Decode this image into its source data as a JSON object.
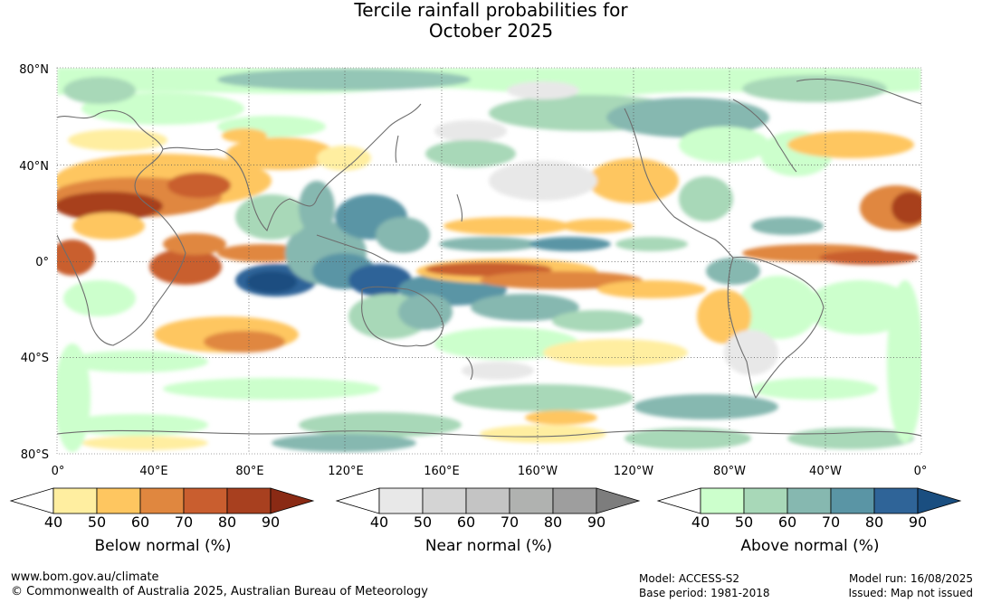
{
  "title": {
    "line1": "Tercile rainfall probabilities for",
    "line2": "October 2025"
  },
  "map": {
    "lat_labels": [
      "80°N",
      "40°N",
      "0°",
      "40°S",
      "80°S"
    ],
    "lon_labels": [
      "0°",
      "40°E",
      "80°E",
      "120°E",
      "160°E",
      "160°W",
      "120°W",
      "80°W",
      "40°W",
      "0°"
    ]
  },
  "colorbars": [
    {
      "title": "Below normal (%)",
      "ticks": [
        "40",
        "50",
        "60",
        "70",
        "80",
        "90"
      ],
      "colors": [
        "#ffffff",
        "#ffeea0",
        "#fec660",
        "#e0873f",
        "#c95e2f",
        "#a8401f",
        "#8a2a14"
      ]
    },
    {
      "title": "Near normal (%)",
      "ticks": [
        "40",
        "50",
        "60",
        "70",
        "80",
        "90"
      ],
      "colors": [
        "#ffffff",
        "#e8e8e8",
        "#d4d4d4",
        "#c4c4c4",
        "#b0b2b0",
        "#9e9e9e",
        "#7d7d7d"
      ]
    },
    {
      "title": "Above normal (%)",
      "ticks": [
        "40",
        "50",
        "60",
        "70",
        "80",
        "90"
      ],
      "colors": [
        "#ffffff",
        "#ccffcc",
        "#a8d8b8",
        "#86b8b0",
        "#5a95a5",
        "#2f6498",
        "#1a4e80"
      ]
    }
  ],
  "footer": {
    "url": "www.bom.gov.au/climate",
    "copyright": "© Commonwealth of Australia 2025, Australian Bureau of Meteorology",
    "model": "Model: ACCESS-S2",
    "base_period": "Base period: 1981-2018",
    "model_run": "Model run: 16/08/2025",
    "issued": "Issued: Map not issued"
  }
}
